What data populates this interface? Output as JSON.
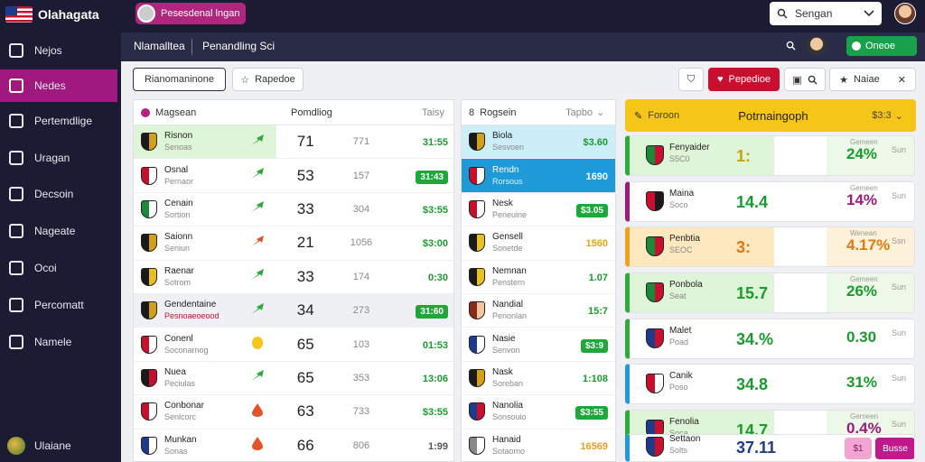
{
  "app": {
    "title": "Olahagata"
  },
  "top": {
    "pill_label": "Pesesdenal lngan",
    "search_placeholder": "Sengan"
  },
  "sidebar": {
    "items": [
      {
        "label": "Nejos",
        "icon": "tag-icon"
      },
      {
        "label": "Nedes",
        "icon": "refresh-icon",
        "active": true
      },
      {
        "label": "Pertemdlige",
        "icon": "monitor-icon"
      },
      {
        "label": "Uragan",
        "icon": "home-icon"
      },
      {
        "label": "Decsoin",
        "icon": "target-icon"
      },
      {
        "label": "Nageate",
        "icon": "calendar-icon"
      },
      {
        "label": "Ocoi",
        "icon": "trash-icon"
      },
      {
        "label": "Percomatt",
        "icon": "tools-icon"
      },
      {
        "label": "Namele",
        "icon": "grid-icon"
      }
    ],
    "footer": "Ulaiane"
  },
  "subbar": {
    "title": "Nlamalltea",
    "subtitle": "Penandling Sci",
    "button": "Oneoe"
  },
  "toolbar": {
    "tab1": "Rianomaninone",
    "tab2": "Rapedoe",
    "red_btn": "Pepedioe",
    "menu_btn": "Naiae"
  },
  "left_panel": {
    "header_left": "Magsean",
    "header_mid": "Pomdliog",
    "header_right": "Taisy",
    "rows": [
      {
        "name": "Risnon",
        "sub": "Senoas",
        "big": "71",
        "mid": "771",
        "val": "31:55",
        "chip": false,
        "vcolor": "#1a9b2e",
        "trend": "up",
        "tcolor": "#2faa3a",
        "logo": "#1a1a1a",
        "logo2": "#d4a017",
        "hl": "#dff5d8"
      },
      {
        "name": "Osnal",
        "sub": "Pernaor",
        "big": "53",
        "mid": "157",
        "val": "31:43",
        "chip": true,
        "vcolor": "#1a9b2e",
        "trend": "up",
        "tcolor": "#2faa3a",
        "logo": "#c8102e",
        "logo2": "#ffffff",
        "hl": ""
      },
      {
        "name": "Cenain",
        "sub": "Sortion",
        "big": "33",
        "mid": "304",
        "val": "$3:55",
        "chip": false,
        "vcolor": "#1a9b2e",
        "trend": "up",
        "tcolor": "#2faa3a",
        "logo": "#1a8a3a",
        "logo2": "#ffffff",
        "hl": ""
      },
      {
        "name": "Saionn",
        "sub": "Seniun",
        "big": "21",
        "mid": "1056",
        "val": "$3:00",
        "chip": false,
        "vcolor": "#1a9b2e",
        "trend": "up",
        "tcolor": "#e2552a",
        "logo": "#1a1a1a",
        "logo2": "#d4a017",
        "hl": ""
      },
      {
        "name": "Raenar",
        "sub": "Sotrom",
        "big": "33",
        "mid": "174",
        "val": "0:30",
        "chip": false,
        "vcolor": "#1a9b2e",
        "trend": "up",
        "tcolor": "#2faa3a",
        "logo": "#1a1a1a",
        "logo2": "#e8c020",
        "hl": ""
      },
      {
        "name": "Gendentaine",
        "sub": "Pesnoaeoeood",
        "big": "34",
        "mid": "273",
        "val": "31:60",
        "chip": true,
        "vcolor": "#1a9b2e",
        "trend": "up",
        "tcolor": "#2faa3a",
        "logo": "#1a1a1a",
        "logo2": "#d4a017",
        "hl": "",
        "subred": true
      },
      {
        "name": "Conenl",
        "sub": "Soconarnog",
        "big": "65",
        "mid": "103",
        "val": "01:53",
        "chip": false,
        "vcolor": "#1a9b2e",
        "trend": "dot",
        "tcolor": "#f5c518",
        "logo": "#c8102e",
        "logo2": "#ffffff",
        "hl": ""
      },
      {
        "name": "Nuea",
        "sub": "Peciulas",
        "big": "65",
        "mid": "353",
        "val": "13:06",
        "chip": false,
        "vcolor": "#1a9b2e",
        "trend": "up",
        "tcolor": "#2faa3a",
        "logo": "#1a1a1a",
        "logo2": "#c8102e",
        "hl": ""
      },
      {
        "name": "Conbonar",
        "sub": "Senlcorc",
        "big": "63",
        "mid": "733",
        "val": "$3:55",
        "chip": false,
        "vcolor": "#1a9b2e",
        "trend": "drop",
        "tcolor": "#e2552a",
        "logo": "#c8102e",
        "logo2": "#ffffff",
        "hl": ""
      },
      {
        "name": "Munkan",
        "sub": "Sonas",
        "big": "66",
        "mid": "806",
        "val": "1:99",
        "chip": false,
        "vcolor": "#555555",
        "trend": "drop",
        "tcolor": "#e2552a",
        "logo": "#1f3a8a",
        "logo2": "#ffffff",
        "hl": ""
      }
    ]
  },
  "mid_panel": {
    "header_left": "Rogsein",
    "header_right": "Tapbo",
    "rows": [
      {
        "name": "Biola",
        "sub": "Sesvoen",
        "val": "$3.60",
        "chip": false,
        "vcolor": "#1a9b2e",
        "logo": "#1a1a1a",
        "logo2": "#d4a017",
        "hl": "#cdeef8"
      },
      {
        "name": "Rendn",
        "sub": "Rorsous",
        "val": "1690",
        "chip": false,
        "vcolor": "#ffffff",
        "logo": "#c8102e",
        "logo2": "#ffffff",
        "hl": "#1f9ad8",
        "dark": true
      },
      {
        "name": "Nesk",
        "sub": "Peneuine",
        "val": "$3.05",
        "chip": true,
        "vcolor": "#1a9b2e",
        "logo": "#c8102e",
        "logo2": "#ffffff",
        "hl": ""
      },
      {
        "name": "Gensell",
        "sub": "Sonetde",
        "val": "1560",
        "chip": false,
        "vcolor": "#e8a21a",
        "logo": "#1a1a1a",
        "logo2": "#e8c020",
        "hl": ""
      },
      {
        "name": "Nemnan",
        "sub": "Penstern",
        "val": "1.07",
        "chip": false,
        "vcolor": "#1a9b2e",
        "logo": "#1a1a1a",
        "logo2": "#e8c020",
        "hl": ""
      },
      {
        "name": "Nandial",
        "sub": "Penonlan",
        "val": "15:7",
        "chip": false,
        "vcolor": "#1a9b2e",
        "logo": "#8a2a1a",
        "logo2": "#f0c8a0",
        "hl": ""
      },
      {
        "name": "Nasie",
        "sub": "Senvon",
        "val": "$3:9",
        "chip": true,
        "vcolor": "#1a9b2e",
        "logo": "#1f3a8a",
        "logo2": "#ffffff",
        "hl": ""
      },
      {
        "name": "Nask",
        "sub": "Soreban",
        "val": "1:108",
        "chip": false,
        "vcolor": "#1a9b2e",
        "logo": "#1a1a1a",
        "logo2": "#d4a017",
        "hl": ""
      },
      {
        "name": "Nanolia",
        "sub": "Sonsouio",
        "val": "$3:55",
        "chip": true,
        "vcolor": "#1a9b2e",
        "logo": "#1f3a8a",
        "logo2": "#c8102e",
        "hl": ""
      },
      {
        "name": "Hanaid",
        "sub": "Sotaomo",
        "val": "16569",
        "chip": false,
        "vcolor": "#e8a21a",
        "logo": "#888888",
        "logo2": "#ffffff",
        "hl": ""
      }
    ]
  },
  "right_panel": {
    "header_left": "Foroon",
    "header_mid": "Potrnaingoph",
    "header_right": "$3:3",
    "cards": [
      {
        "name": "Fenyaider",
        "sub": "S5C0",
        "big": "1:",
        "label": "Gemeen",
        "pct": "24%",
        "extra": "Sun",
        "accent": "#2faa3a",
        "hl": "#dff5d8",
        "bigcolor": "#c7a20a",
        "pctcolor": "#1a9b2e",
        "logo": "#1a8a3a",
        "logo2": "#c8102e"
      },
      {
        "name": "Maina",
        "sub": "Soco",
        "big": "14.4",
        "label": "Gemeen",
        "pct": "14%",
        "extra": "Sun",
        "accent": "#a0197f",
        "hl": "",
        "bigcolor": "#1a9b2e",
        "pctcolor": "#a0197f",
        "logo": "#c8102e",
        "logo2": "#1a1a1a"
      },
      {
        "name": "Penbtia",
        "sub": "SEOC",
        "big": "3:",
        "label": "Wenean",
        "pct": "4.17%",
        "extra": "Ssn",
        "accent": "#f0a020",
        "hl": "#fde8c0",
        "bigcolor": "#e07a10",
        "pctcolor": "#e07a10",
        "logo": "#1a8a3a",
        "logo2": "#c8102e"
      },
      {
        "name": "Ponbola",
        "sub": "Seat",
        "big": "15.7",
        "label": "Gemeen",
        "pct": "26%",
        "extra": "Sun",
        "accent": "#2faa3a",
        "hl": "#dff5d8",
        "bigcolor": "#1a9b2e",
        "pctcolor": "#1a9b2e",
        "logo": "#1a8a3a",
        "logo2": "#c8102e"
      },
      {
        "name": "Malet",
        "sub": "Poad",
        "big": "34.%",
        "label": "",
        "pct": "0.30",
        "extra": "Sun",
        "accent": "#2faa3a",
        "hl": "",
        "bigcolor": "#1a9b2e",
        "pctcolor": "#1a9b2e",
        "logo": "#1f3a8a",
        "logo2": "#c8102e"
      },
      {
        "name": "Canik",
        "sub": "Poso",
        "big": "34.8",
        "label": "",
        "pct": "31%",
        "extra": "Sun",
        "accent": "#1f9ad8",
        "hl": "",
        "bigcolor": "#1a9b2e",
        "pctcolor": "#1a9b2e",
        "logo": "#c8102e",
        "logo2": "#ffffff"
      },
      {
        "name": "Fenolia",
        "sub": "Soca",
        "big": "14.7",
        "label": "Gerneen",
        "pct": "0.4%",
        "extra": "Sun",
        "accent": "#2faa3a",
        "hl": "#dff5d8",
        "bigcolor": "#1a9b2e",
        "pctcolor": "#a0197f",
        "logo": "#1f3a8a",
        "logo2": "#c8102e"
      },
      {
        "name": "Settaon",
        "sub": "Solts",
        "big": "37.11",
        "label": "",
        "pct": "",
        "extra": "",
        "accent": "#1f9ad8",
        "hl": "",
        "bigcolor": "#1f3a8a",
        "pctcolor": "#1a9b2e",
        "logo": "#1f3a8a",
        "logo2": "#c8102e",
        "buttons": [
          "$1",
          "Busse"
        ]
      }
    ]
  }
}
